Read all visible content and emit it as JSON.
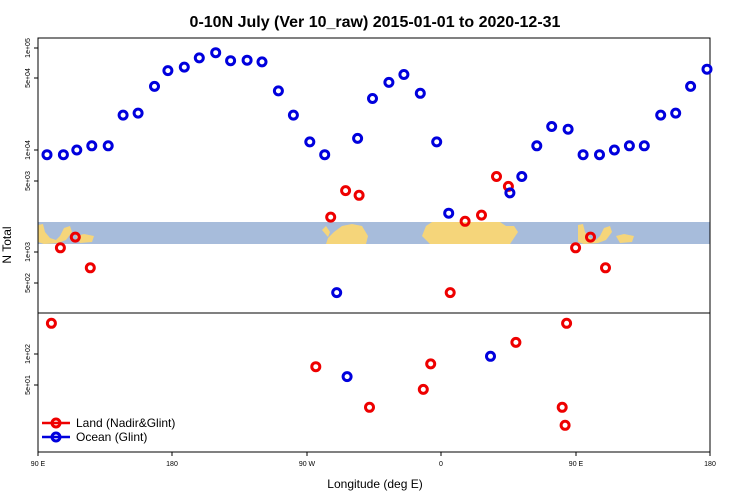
{
  "chart_data": {
    "type": "scatter",
    "title": "0-10N July (Ver 10_raw)   2015-01-01 to 2020-12-31",
    "xlabel": "Longitude (deg E)",
    "ylabel": "N Total",
    "y_scale": "log",
    "x_ticks": [
      {
        "value": 90,
        "label": "90 E"
      },
      {
        "value": 180,
        "label": "180"
      },
      {
        "value": 270,
        "label": "90 W"
      },
      {
        "value": 360,
        "label": "0"
      },
      {
        "value": 450,
        "label": "90 E"
      },
      {
        "value": 540,
        "label": "180"
      }
    ],
    "xlim": [
      90,
      540
    ],
    "y_ticks": [
      "1e+05",
      "5e+04",
      "1e+04",
      "5e+03",
      "1e+03",
      "5e+02",
      "1e+02",
      "5e+01"
    ],
    "colors": {
      "land": "#ee0000",
      "ocean": "#0000dd",
      "map_ocean": "#a7bcdb",
      "map_land": "#f5d57a"
    },
    "legend_position": "bottom-left",
    "series": [
      {
        "name": "Land (Nadir&Glint)",
        "color": "#ee0000",
        "points": [
          {
            "x": 99,
            "y": 200
          },
          {
            "x": 105,
            "y": 1100
          },
          {
            "x": 115,
            "y": 1400
          },
          {
            "x": 125,
            "y": 700
          },
          {
            "x": 276,
            "y": 75
          },
          {
            "x": 286,
            "y": 2200
          },
          {
            "x": 296,
            "y": 4000
          },
          {
            "x": 305,
            "y": 3600
          },
          {
            "x": 312,
            "y": 30
          },
          {
            "x": 348,
            "y": 45
          },
          {
            "x": 353,
            "y": 80
          },
          {
            "x": 366,
            "y": 400
          },
          {
            "x": 376,
            "y": 2000
          },
          {
            "x": 387,
            "y": 2300
          },
          {
            "x": 397,
            "y": 5500
          },
          {
            "x": 405,
            "y": 4400
          },
          {
            "x": 410,
            "y": 130
          },
          {
            "x": 441,
            "y": 30
          },
          {
            "x": 443,
            "y": 20
          },
          {
            "x": 444,
            "y": 200
          },
          {
            "x": 450,
            "y": 1100
          },
          {
            "x": 460,
            "y": 1400
          },
          {
            "x": 470,
            "y": 700
          }
        ]
      },
      {
        "name": "Ocean (Glint)",
        "color": "#0000dd",
        "points": [
          {
            "x": 96,
            "y": 9000
          },
          {
            "x": 107,
            "y": 9000
          },
          {
            "x": 116,
            "y": 10000
          },
          {
            "x": 126,
            "y": 11000
          },
          {
            "x": 137,
            "y": 11000
          },
          {
            "x": 147,
            "y": 22000
          },
          {
            "x": 157,
            "y": 23000
          },
          {
            "x": 168,
            "y": 42000
          },
          {
            "x": 177,
            "y": 60000
          },
          {
            "x": 188,
            "y": 65000
          },
          {
            "x": 198,
            "y": 80000
          },
          {
            "x": 209,
            "y": 90000
          },
          {
            "x": 219,
            "y": 75000
          },
          {
            "x": 230,
            "y": 76000
          },
          {
            "x": 240,
            "y": 73000
          },
          {
            "x": 251,
            "y": 38000
          },
          {
            "x": 261,
            "y": 22000
          },
          {
            "x": 272,
            "y": 12000
          },
          {
            "x": 282,
            "y": 9000
          },
          {
            "x": 290,
            "y": 400
          },
          {
            "x": 297,
            "y": 60
          },
          {
            "x": 304,
            "y": 13000
          },
          {
            "x": 314,
            "y": 32000
          },
          {
            "x": 325,
            "y": 46000
          },
          {
            "x": 335,
            "y": 55000
          },
          {
            "x": 346,
            "y": 36000
          },
          {
            "x": 357,
            "y": 12000
          },
          {
            "x": 365,
            "y": 2400
          },
          {
            "x": 393,
            "y": 95
          },
          {
            "x": 406,
            "y": 3800
          },
          {
            "x": 414,
            "y": 5500
          },
          {
            "x": 424,
            "y": 11000
          },
          {
            "x": 434,
            "y": 17000
          },
          {
            "x": 445,
            "y": 16000
          },
          {
            "x": 455,
            "y": 9000
          },
          {
            "x": 466,
            "y": 9000
          },
          {
            "x": 476,
            "y": 10000
          },
          {
            "x": 486,
            "y": 11000
          },
          {
            "x": 496,
            "y": 11000
          },
          {
            "x": 507,
            "y": 22000
          },
          {
            "x": 517,
            "y": 23000
          },
          {
            "x": 527,
            "y": 42000
          },
          {
            "x": 538,
            "y": 62000
          }
        ]
      }
    ]
  }
}
